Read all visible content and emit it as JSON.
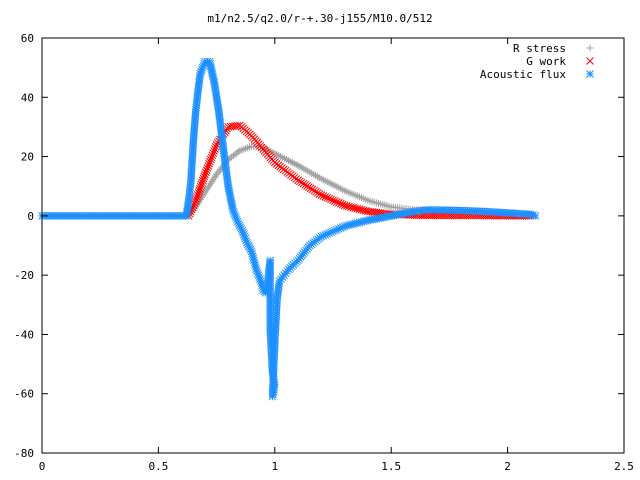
{
  "chart_data": {
    "type": "scatter",
    "title": "m1/n2.5/q2.0/r-+.30-j155/M10.0/512",
    "xlabel": "",
    "ylabel": "",
    "xlim": [
      0,
      2.5
    ],
    "ylim": [
      -80,
      60
    ],
    "xticks": [
      0,
      0.5,
      1,
      1.5,
      2,
      2.5
    ],
    "xtick_labels": [
      "0",
      "0.5",
      "1",
      "1.5",
      "2",
      "2.5"
    ],
    "yticks": [
      -80,
      -60,
      -40,
      -20,
      0,
      20,
      40,
      60
    ],
    "ytick_labels": [
      "-80",
      "-60",
      "-40",
      "-20",
      "0",
      "20",
      "40",
      "60"
    ],
    "grid": false,
    "legend_position": "top-right",
    "series": [
      {
        "name": "R stress",
        "marker": "plus",
        "color": "#a0a0a0",
        "points": [
          [
            0,
            0
          ],
          [
            0.2,
            0
          ],
          [
            0.4,
            0
          ],
          [
            0.6,
            0
          ],
          [
            0.63,
            0
          ],
          [
            0.66,
            3
          ],
          [
            0.7,
            8
          ],
          [
            0.75,
            14
          ],
          [
            0.8,
            19
          ],
          [
            0.85,
            22
          ],
          [
            0.9,
            23.5
          ],
          [
            0.95,
            23
          ],
          [
            1.0,
            21
          ],
          [
            1.1,
            17
          ],
          [
            1.2,
            12.5
          ],
          [
            1.3,
            8.5
          ],
          [
            1.4,
            5.2
          ],
          [
            1.5,
            3
          ],
          [
            1.6,
            2
          ],
          [
            1.7,
            1.8
          ],
          [
            1.8,
            1.5
          ],
          [
            1.9,
            1.2
          ],
          [
            2.0,
            0.8
          ],
          [
            2.1,
            0.3
          ]
        ]
      },
      {
        "name": "G work",
        "marker": "cross",
        "color": "#ff0000",
        "points": [
          [
            0.63,
            0
          ],
          [
            0.66,
            5
          ],
          [
            0.7,
            14
          ],
          [
            0.75,
            24
          ],
          [
            0.8,
            30
          ],
          [
            0.85,
            30.5
          ],
          [
            0.9,
            27
          ],
          [
            0.95,
            22.5
          ],
          [
            1.0,
            18
          ],
          [
            1.1,
            12
          ],
          [
            1.2,
            7
          ],
          [
            1.3,
            3.5
          ],
          [
            1.4,
            1.5
          ],
          [
            1.5,
            0.5
          ],
          [
            1.6,
            0.2
          ],
          [
            1.7,
            0.1
          ],
          [
            1.8,
            0.1
          ],
          [
            1.9,
            0.1
          ],
          [
            2.0,
            0
          ],
          [
            2.1,
            0
          ]
        ]
      },
      {
        "name": "Acoustic flux",
        "marker": "star",
        "color": "#1e90ff",
        "points": [
          [
            0,
            0
          ],
          [
            0.2,
            0
          ],
          [
            0.4,
            0
          ],
          [
            0.6,
            0
          ],
          [
            0.62,
            0
          ],
          [
            0.63,
            5
          ],
          [
            0.64,
            12
          ],
          [
            0.65,
            25
          ],
          [
            0.66,
            35
          ],
          [
            0.67,
            42
          ],
          [
            0.68,
            48
          ],
          [
            0.7,
            52
          ],
          [
            0.72,
            52
          ],
          [
            0.74,
            45
          ],
          [
            0.76,
            35
          ],
          [
            0.78,
            22
          ],
          [
            0.8,
            10
          ],
          [
            0.82,
            2
          ],
          [
            0.84,
            -2
          ],
          [
            0.86,
            -5
          ],
          [
            0.88,
            -9
          ],
          [
            0.9,
            -12
          ],
          [
            0.91,
            -15
          ],
          [
            0.92,
            -18
          ],
          [
            0.93,
            -20
          ],
          [
            0.94,
            -22
          ],
          [
            0.95,
            -25
          ],
          [
            0.96,
            -26
          ],
          [
            0.97,
            -22
          ],
          [
            0.98,
            -15
          ],
          [
            0.98,
            -38
          ],
          [
            0.99,
            -53
          ],
          [
            1.0,
            -57
          ],
          [
            0.99,
            -61
          ],
          [
            1.0,
            -43
          ],
          [
            1.01,
            -28
          ],
          [
            1.02,
            -22
          ],
          [
            1.04,
            -20
          ],
          [
            1.06,
            -18
          ],
          [
            1.1,
            -15
          ],
          [
            1.15,
            -10
          ],
          [
            1.2,
            -7
          ],
          [
            1.3,
            -3.5
          ],
          [
            1.4,
            -1.5
          ],
          [
            1.5,
            0
          ],
          [
            1.6,
            1.5
          ],
          [
            1.65,
            2
          ],
          [
            1.7,
            2
          ],
          [
            1.8,
            1.8
          ],
          [
            1.9,
            1.5
          ],
          [
            2.0,
            1
          ],
          [
            2.1,
            0.5
          ],
          [
            2.12,
            0
          ]
        ]
      }
    ]
  }
}
